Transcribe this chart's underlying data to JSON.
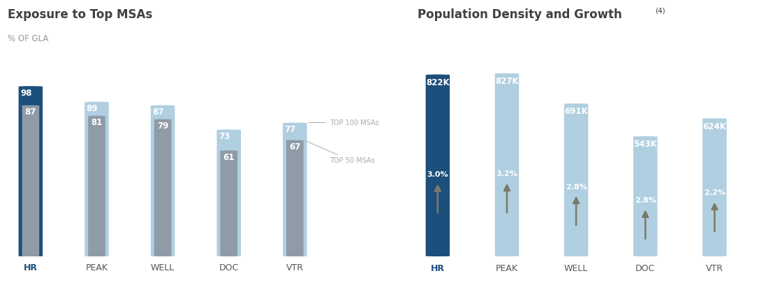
{
  "left_title": "Exposure to Top MSAs",
  "left_subtitle": "% OF GLA",
  "right_title": "Population Density and Growth",
  "right_superscript": "(4)",
  "categories": [
    "HR",
    "PEAK",
    "WELL",
    "DOC",
    "VTR"
  ],
  "top100_values": [
    98,
    89,
    87,
    73,
    77
  ],
  "top50_values": [
    87,
    81,
    79,
    61,
    67
  ],
  "density_values": [
    822,
    827,
    691,
    543,
    624
  ],
  "growth_values": [
    "3.0%",
    "3.2%",
    "2.8%",
    "2.8%",
    "2.2%"
  ],
  "density_labels": [
    "822K",
    "827K",
    "691K",
    "543K",
    "624K"
  ],
  "hr_bar_color": "#1d4f7c",
  "light_blue_color": "#b0cfe0",
  "gray_color": "#8f9ba6",
  "arrow_color": "#7a7a6a",
  "hr_xlabel_color": "#1d4f7c",
  "other_xlabel_color": "#555555",
  "title_color": "#404040",
  "subtitle_color": "#999999",
  "annotation_color": "#aaaaaa",
  "bg_color": "#ffffff",
  "left_annotation_top100": "TOP 100 MSAs",
  "left_annotation_top50": "TOP 50 MSAs"
}
